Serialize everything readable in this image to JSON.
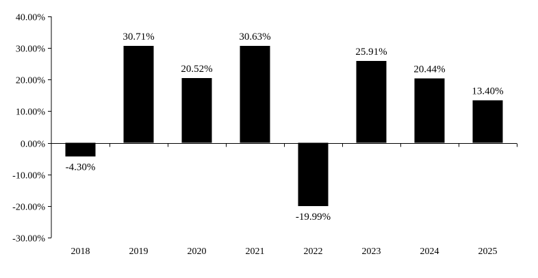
{
  "chart_data": {
    "type": "bar",
    "title": "",
    "xlabel": "",
    "ylabel": "",
    "categories": [
      "2018",
      "2019",
      "2020",
      "2021",
      "2022",
      "2023",
      "2024",
      "2025"
    ],
    "values": [
      -4.3,
      30.71,
      20.52,
      30.63,
      -19.99,
      25.91,
      20.44,
      13.4
    ],
    "data_labels": [
      "-4.30%",
      "30.71%",
      "20.52%",
      "30.63%",
      "-19.99%",
      "25.91%",
      "20.44%",
      "13.40%"
    ],
    "yticks": [
      40,
      30,
      20,
      10,
      0,
      -10,
      -20,
      -30
    ],
    "ytick_labels": [
      "40.00%",
      "30.00%",
      "20.00%",
      "10.00%",
      "0.00%",
      "-10.00%",
      "-20.00%",
      "-30.00%"
    ],
    "ylim": [
      -30,
      40
    ],
    "grid": false,
    "legend": "none",
    "bar_color": "#000000"
  }
}
